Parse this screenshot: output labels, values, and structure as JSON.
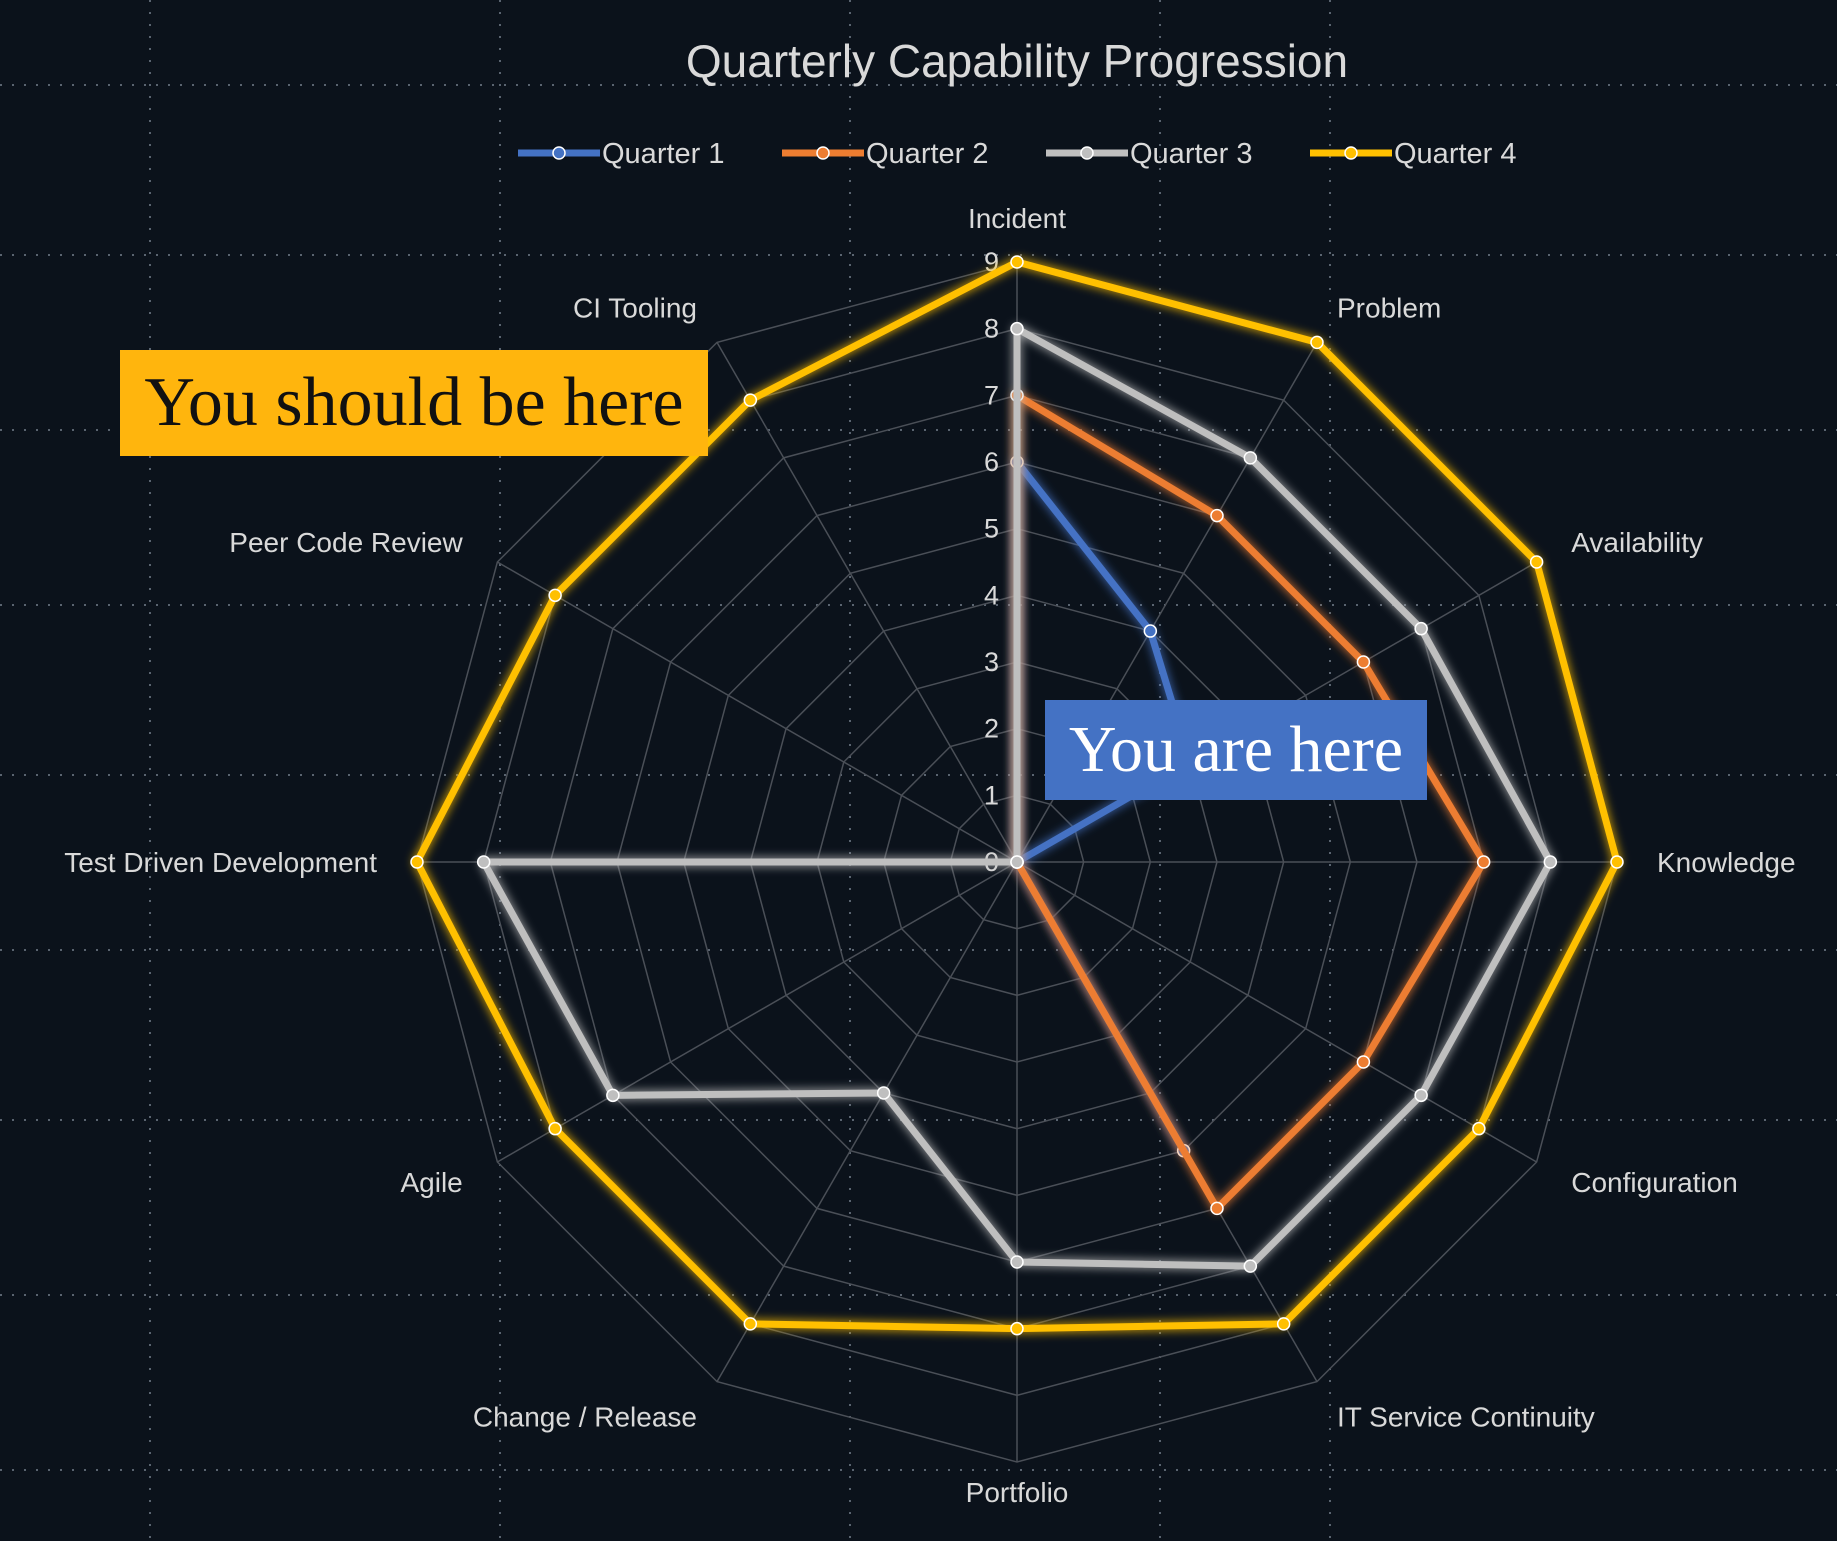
{
  "chart_data": {
    "type": "radar",
    "title": "Quarterly Capability Progression",
    "categories": [
      "Incident",
      "Problem",
      "Availability",
      "Knowledge",
      "Configuration",
      "IT Service Continuity",
      "Portfolio",
      "Change / Release",
      "Agile",
      "Test Driven Development",
      "Peer Code Review",
      "CI Tooling"
    ],
    "radial_ticks": [
      "0",
      "1",
      "2",
      "3",
      "4",
      "5",
      "6",
      "7",
      "8",
      "9"
    ],
    "rlim": [
      0,
      9
    ],
    "legend_position": "top",
    "series": [
      {
        "name": "Quarter 1",
        "color": "#4472c4",
        "values": [
          6,
          4,
          3,
          0,
          0,
          5,
          0,
          0,
          0,
          0,
          0,
          0
        ]
      },
      {
        "name": "Quarter 2",
        "color": "#ed7d31",
        "values": [
          7,
          6,
          6,
          7,
          6,
          6,
          0,
          0,
          0,
          0,
          0,
          0
        ]
      },
      {
        "name": "Quarter 3",
        "color": "#bfbfbf",
        "values": [
          8,
          7,
          7,
          8,
          7,
          7,
          6,
          4,
          7,
          8,
          0,
          0
        ]
      },
      {
        "name": "Quarter 4",
        "color": "#ffc000",
        "values": [
          9,
          9,
          9,
          9,
          8,
          8,
          7,
          8,
          8,
          9,
          8,
          8
        ]
      }
    ]
  },
  "annotations": {
    "should": "You should be here",
    "are": "You are here"
  }
}
